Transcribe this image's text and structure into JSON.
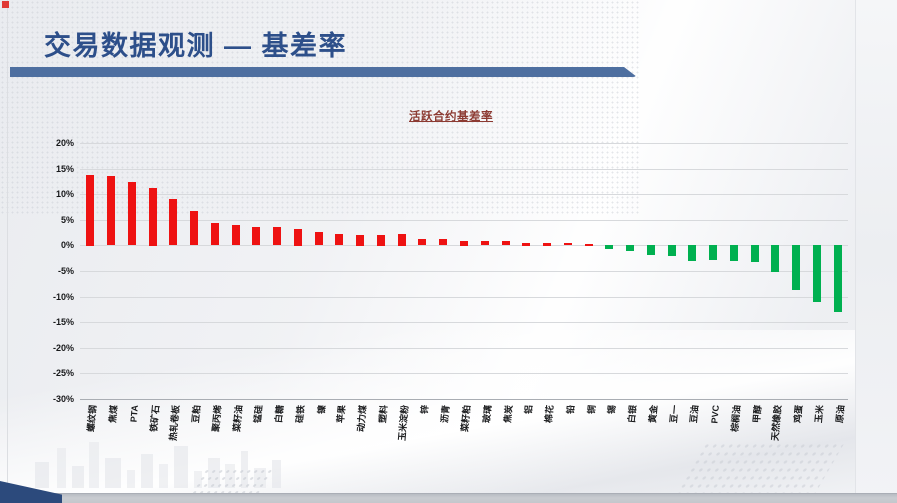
{
  "slide": {
    "page_title": "交易数据观测 — 基差率",
    "title_color": "#2d4f8a",
    "rule_color": "#4e6fa0"
  },
  "chart_data": {
    "type": "bar",
    "title": "活跃合约基差率",
    "title_color": "#8c3a32",
    "categories": [
      "螺纹钢",
      "焦煤",
      "PTA",
      "铁矿石",
      "热轧卷板",
      "豆粕",
      "聚丙烯",
      "菜籽油",
      "锰硅",
      "白糖",
      "硅铁",
      "镍",
      "苹果",
      "动力煤",
      "塑料",
      "玉米淀粉",
      "锌",
      "沥青",
      "菜籽粕",
      "玻璃",
      "焦炭",
      "铝",
      "棉花",
      "铅",
      "铜",
      "锡",
      "白银",
      "黄金",
      "豆一",
      "豆油",
      "PVC",
      "棕榈油",
      "甲醇",
      "天然橡胶",
      "鸡蛋",
      "玉米",
      "原油"
    ],
    "values": [
      13.8,
      13.5,
      12.3,
      11.3,
      9.0,
      6.7,
      4.3,
      3.9,
      3.6,
      3.5,
      3.3,
      2.6,
      2.2,
      2.1,
      2.1,
      2.3,
      1.2,
      1.2,
      0.9,
      0.8,
      0.8,
      0.5,
      0.5,
      0.4,
      0.3,
      -0.8,
      -1.2,
      -2.0,
      -2.1,
      -3.1,
      -3.0,
      -3.1,
      -3.3,
      -5.3,
      -8.8,
      -11.1,
      -13.1
    ],
    "unit": "%",
    "xlabel": "",
    "ylabel": "",
    "ylim": [
      -30,
      20
    ],
    "ytick_step": 5,
    "ytick_labels": [
      "20%",
      "15%",
      "10%",
      "5%",
      "0%",
      "-5%",
      "-10%",
      "-15%",
      "-20%",
      "-25%",
      "-30%"
    ],
    "positive_color": "#ee1212",
    "negative_color": "#00b050",
    "grid": true,
    "legend": "none"
  }
}
